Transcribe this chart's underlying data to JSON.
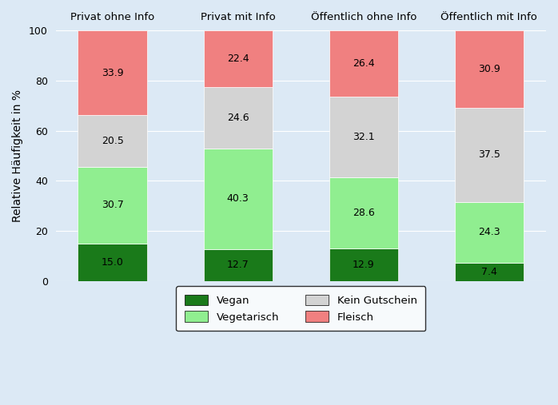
{
  "categories": [
    "Privat ohne Info",
    "Privat mit Info",
    "Öffentlich ohne Info",
    "Öffentlich mit Info"
  ],
  "segments": {
    "Vegan": [
      15.0,
      12.7,
      12.9,
      7.4
    ],
    "Vegetarisch": [
      30.7,
      40.3,
      28.6,
      24.3
    ],
    "Kein Gutschein": [
      20.5,
      24.6,
      32.1,
      37.5
    ],
    "Fleisch": [
      33.9,
      22.4,
      26.4,
      30.9
    ]
  },
  "colors": {
    "Vegan": "#1a7a1a",
    "Vegetarisch": "#90ee90",
    "Kein Gutschein": "#d3d3d3",
    "Fleisch": "#f08080"
  },
  "ylabel": "Relative Häufigkeit in %",
  "ylim": [
    0,
    100
  ],
  "yticks": [
    0,
    20,
    40,
    60,
    80,
    100
  ],
  "background_color": "#dce9f5",
  "bar_color_inner": "#ffffff",
  "bar_width": 0.55,
  "legend_order": [
    "Vegan",
    "Vegetarisch",
    "Kein Gutschein",
    "Fleisch"
  ]
}
